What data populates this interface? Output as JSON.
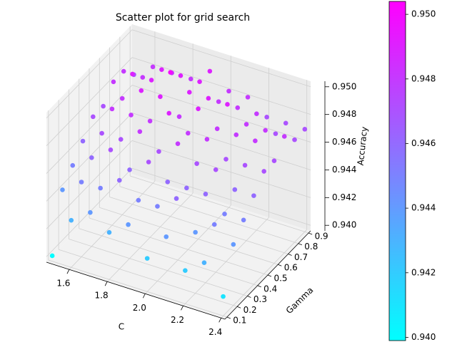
{
  "chart_data": {
    "type": "scatter3d",
    "title": "Scatter plot for grid search",
    "xlabel": "C",
    "ylabel": "Gamma",
    "zlabel": "Accuracy",
    "colormap": "cool",
    "x": [
      1.5,
      1.5,
      1.5,
      1.5,
      1.5,
      1.5,
      1.5,
      1.5,
      1.5,
      1.6,
      1.6,
      1.6,
      1.6,
      1.6,
      1.6,
      1.6,
      1.6,
      1.6,
      1.7,
      1.7,
      1.7,
      1.7,
      1.7,
      1.7,
      1.7,
      1.7,
      1.7,
      1.8,
      1.8,
      1.8,
      1.8,
      1.8,
      1.8,
      1.8,
      1.8,
      1.8,
      1.9,
      1.9,
      1.9,
      1.9,
      1.9,
      1.9,
      1.9,
      1.9,
      1.9,
      2.0,
      2.0,
      2.0,
      2.0,
      2.0,
      2.0,
      2.0,
      2.0,
      2.0,
      2.1,
      2.1,
      2.1,
      2.1,
      2.1,
      2.1,
      2.1,
      2.1,
      2.1,
      2.2,
      2.2,
      2.2,
      2.2,
      2.2,
      2.2,
      2.2,
      2.2,
      2.2,
      2.3,
      2.3,
      2.3,
      2.3,
      2.3,
      2.3,
      2.3,
      2.3,
      2.3,
      2.4,
      2.4,
      2.4,
      2.4,
      2.4,
      2.4,
      2.4,
      2.4,
      2.4
    ],
    "y": [
      0.1,
      0.2,
      0.3,
      0.4,
      0.5,
      0.6,
      0.7,
      0.8,
      0.9,
      0.1,
      0.2,
      0.3,
      0.4,
      0.5,
      0.6,
      0.7,
      0.8,
      0.9,
      0.1,
      0.2,
      0.3,
      0.4,
      0.5,
      0.6,
      0.7,
      0.8,
      0.9,
      0.1,
      0.2,
      0.3,
      0.4,
      0.5,
      0.6,
      0.7,
      0.8,
      0.9,
      0.1,
      0.2,
      0.3,
      0.4,
      0.5,
      0.6,
      0.7,
      0.8,
      0.9,
      0.1,
      0.2,
      0.3,
      0.4,
      0.5,
      0.6,
      0.7,
      0.8,
      0.9,
      0.1,
      0.2,
      0.3,
      0.4,
      0.5,
      0.6,
      0.7,
      0.8,
      0.9,
      0.1,
      0.2,
      0.3,
      0.4,
      0.5,
      0.6,
      0.7,
      0.8,
      0.9,
      0.1,
      0.2,
      0.3,
      0.4,
      0.5,
      0.6,
      0.7,
      0.8,
      0.9,
      0.1,
      0.2,
      0.3,
      0.4,
      0.5,
      0.6,
      0.7,
      0.8,
      0.9
    ],
    "z": [
      0.94,
      0.944,
      0.945,
      0.946,
      0.947,
      0.947,
      0.948,
      0.948,
      0.947,
      0.943,
      0.945,
      0.946,
      0.947,
      0.948,
      0.948,
      0.949,
      0.948,
      0.948,
      0.944,
      0.945,
      0.947,
      0.947,
      0.948,
      0.949,
      0.949,
      0.949,
      0.948,
      0.943,
      0.946,
      0.946,
      0.948,
      0.948,
      0.949,
      0.95,
      0.949,
      0.948,
      0.944,
      0.945,
      0.947,
      0.947,
      0.949,
      0.948,
      0.949,
      0.949,
      0.949,
      0.942,
      0.945,
      0.946,
      0.948,
      0.948,
      0.949,
      0.949,
      0.948,
      0.948,
      0.944,
      0.946,
      0.946,
      0.947,
      0.948,
      0.948,
      0.949,
      0.948,
      0.948,
      0.942,
      0.944,
      0.946,
      0.947,
      0.947,
      0.948,
      0.948,
      0.948,
      0.947,
      0.943,
      0.945,
      0.945,
      0.946,
      0.947,
      0.948,
      0.948,
      0.947,
      0.947,
      0.941,
      0.944,
      0.945,
      0.946,
      0.947,
      0.947,
      0.948,
      0.947,
      0.947
    ],
    "xlim": [
      1.48,
      2.42
    ],
    "xticks": [
      1.6,
      1.8,
      {
        "value": 2,
        "label": "2.0"
      },
      2.2,
      2.4
    ],
    "ylim": [
      0.08,
      0.92
    ],
    "yticks": [
      0.1,
      0.2,
      0.3,
      0.4,
      0.5,
      0.6,
      0.7,
      0.8,
      0.9
    ],
    "zlim": [
      0.9396,
      0.9504
    ],
    "zticks": [
      {
        "value": 0.94,
        "label": "0.940"
      },
      0.942,
      0.944,
      0.946,
      0.948,
      {
        "value": 0.95,
        "label": "0.950"
      }
    ],
    "clim": [
      0.9399,
      0.9504
    ],
    "cticks": [
      {
        "value": 0.94,
        "label": "0.940"
      },
      0.942,
      0.944,
      0.946,
      0.948,
      {
        "value": 0.95,
        "label": "0.950"
      }
    ],
    "grid": true
  }
}
